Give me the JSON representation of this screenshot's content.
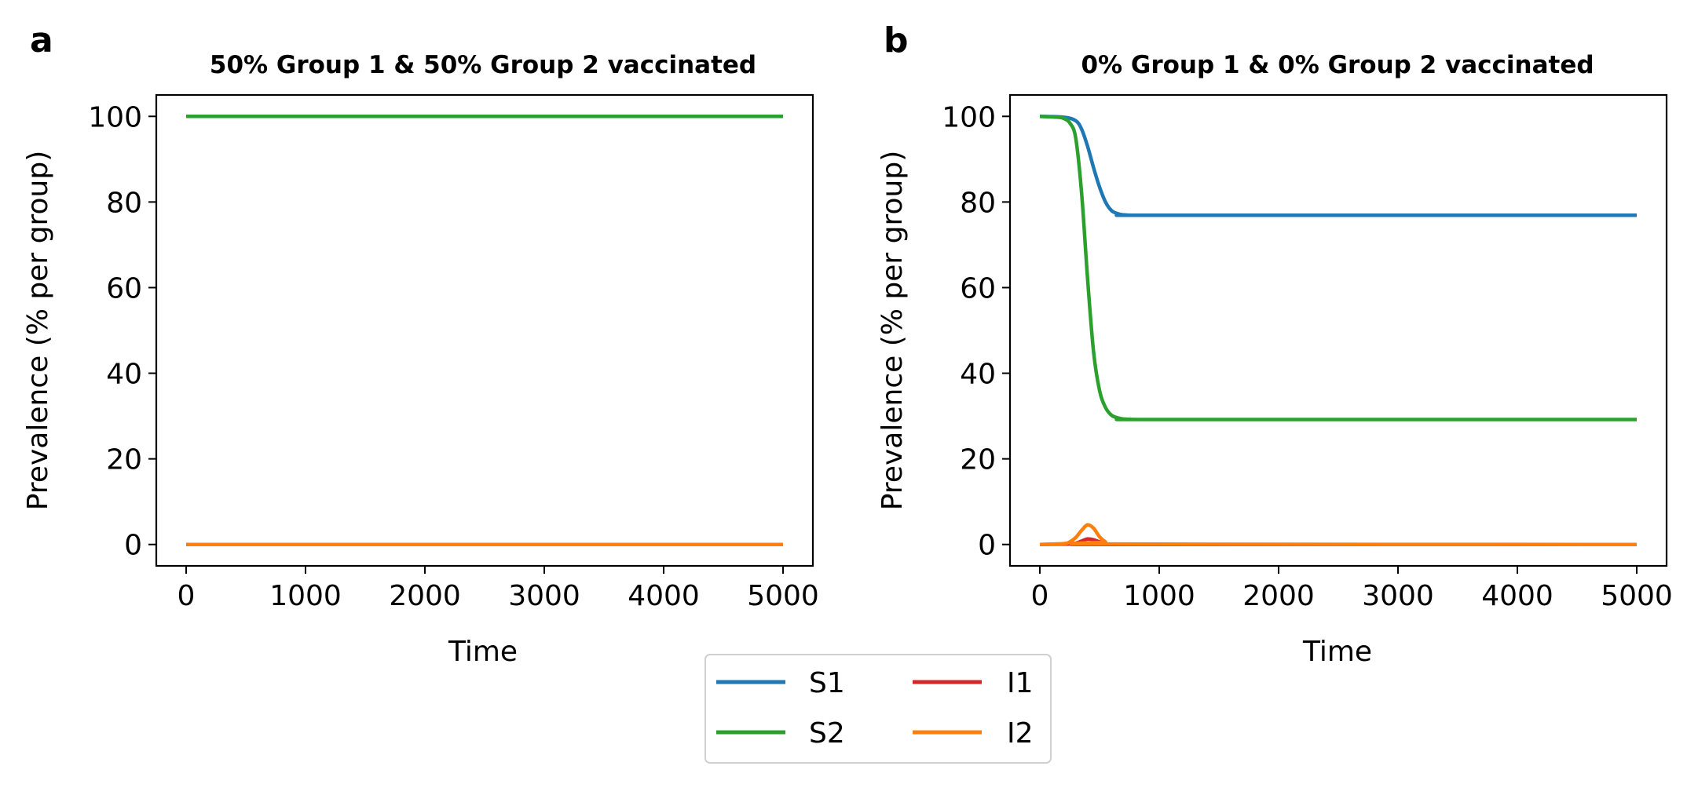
{
  "chart_data": [
    {
      "type": "line",
      "panel_label": "a",
      "title": "50% Group 1 & 50% Group 2 vaccinated",
      "xlabel": "Time",
      "ylabel": "Prevalence (% per group)",
      "xlim": [
        -250,
        5250
      ],
      "ylim": [
        -5,
        105
      ],
      "xticks": [
        0,
        1000,
        2000,
        3000,
        4000,
        5000
      ],
      "yticks": [
        0,
        20,
        40,
        60,
        80,
        100
      ],
      "grid": false,
      "series": [
        {
          "name": "S1",
          "color": "#1f77b4",
          "x": [
            0,
            5000
          ],
          "y": [
            100,
            100
          ]
        },
        {
          "name": "S2",
          "color": "#2ca02c",
          "x": [
            0,
            5000
          ],
          "y": [
            100,
            100
          ]
        },
        {
          "name": "I1",
          "color": "#d62728",
          "x": [
            0,
            5000
          ],
          "y": [
            0,
            0
          ]
        },
        {
          "name": "I2",
          "color": "#ff7f0e",
          "x": [
            0,
            5000
          ],
          "y": [
            0,
            0
          ]
        }
      ]
    },
    {
      "type": "line",
      "panel_label": "b",
      "title": "0% Group 1 & 0% Group 2 vaccinated",
      "xlabel": "Time",
      "ylabel": "Prevalence (% per group)",
      "xlim": [
        -250,
        5250
      ],
      "ylim": [
        -5,
        105
      ],
      "xticks": [
        0,
        1000,
        2000,
        3000,
        4000,
        5000
      ],
      "yticks": [
        0,
        20,
        40,
        60,
        80,
        100
      ],
      "grid": false,
      "series": [
        {
          "name": "S1",
          "color": "#1f77b4",
          "x": [
            0,
            200,
            300,
            350,
            400,
            450,
            500,
            550,
            600,
            650,
            700,
            800,
            1000,
            5000
          ],
          "y": [
            100,
            99.8,
            99,
            97,
            93,
            88,
            83.5,
            80,
            78,
            77.3,
            77,
            76.9,
            76.9,
            76.9
          ]
        },
        {
          "name": "S2",
          "color": "#2ca02c",
          "x": [
            0,
            150,
            200,
            250,
            300,
            350,
            400,
            450,
            500,
            550,
            600,
            650,
            700,
            800,
            1000,
            5000
          ],
          "y": [
            100,
            99.8,
            99.5,
            98.5,
            95,
            82,
            62,
            45,
            36,
            32,
            30.2,
            29.6,
            29.3,
            29.2,
            29.2,
            29.2
          ]
        },
        {
          "name": "I1",
          "color": "#d62728",
          "x": [
            0,
            250,
            300,
            350,
            400,
            450,
            500,
            550,
            600,
            5000
          ],
          "y": [
            0,
            0.1,
            0.3,
            0.8,
            1.3,
            1.1,
            0.6,
            0.2,
            0,
            0
          ]
        },
        {
          "name": "I2",
          "color": "#ff7f0e",
          "x": [
            0,
            200,
            250,
            300,
            350,
            400,
            450,
            500,
            550,
            600,
            5000
          ],
          "y": [
            0,
            0.2,
            0.6,
            1.6,
            3.3,
            4.6,
            3.8,
            1.8,
            0.6,
            0.1,
            0
          ]
        }
      ]
    }
  ],
  "legend": {
    "placement": "bottom-center",
    "columns": 2,
    "entries": [
      {
        "label": "S1",
        "color": "#1f77b4"
      },
      {
        "label": "I1",
        "color": "#d62728"
      },
      {
        "label": "S2",
        "color": "#2ca02c"
      },
      {
        "label": "I2",
        "color": "#ff7f0e"
      }
    ]
  }
}
